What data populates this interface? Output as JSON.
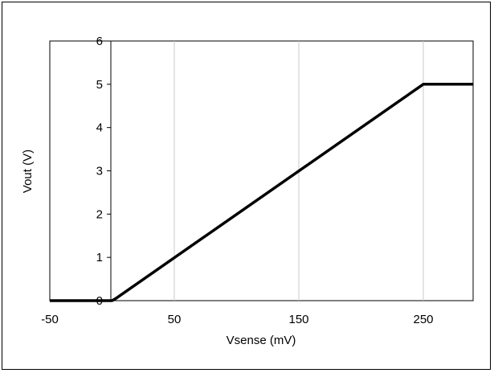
{
  "chart_data": {
    "type": "line",
    "title": "",
    "xlabel": "Vsense (mV)",
    "ylabel": "Vout (V)",
    "xlim": [
      -50,
      290
    ],
    "ylim": [
      0,
      6
    ],
    "x_ticks": [
      -50,
      50,
      150,
      250
    ],
    "x_tick_labels": [
      "-50",
      "50",
      "150",
      "250"
    ],
    "y_ticks": [
      0,
      1,
      2,
      3,
      4,
      5,
      6
    ],
    "y_tick_labels": [
      "0",
      "1",
      "2",
      "3",
      "4",
      "5",
      "6"
    ],
    "grid": {
      "vertical": true,
      "horizontal": false
    },
    "legend": "none",
    "series": [
      {
        "color": "#000000",
        "x": [
          -50,
          0,
          3,
          240,
          250,
          290
        ],
        "y": [
          0,
          0,
          0.05,
          4.8,
          5,
          5
        ]
      }
    ]
  }
}
